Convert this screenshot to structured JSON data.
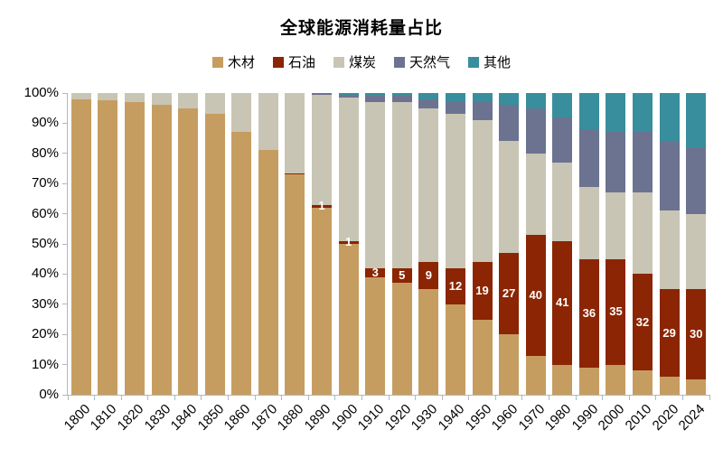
{
  "title": "全球能源消耗量占比",
  "legend": [
    {
      "key": "wood",
      "label": "木材",
      "color": "#C69D60"
    },
    {
      "key": "oil",
      "label": "石油",
      "color": "#8B2503"
    },
    {
      "key": "coal",
      "label": "煤炭",
      "color": "#C9C5B5"
    },
    {
      "key": "gas",
      "label": "天然气",
      "color": "#6B7391"
    },
    {
      "key": "other",
      "label": "其他",
      "color": "#398E9D"
    }
  ],
  "chart_data": {
    "type": "bar",
    "stacked": true,
    "percent": true,
    "title": "全球能源消耗量占比",
    "grid": false,
    "legend_position": "top",
    "ylim": [
      0,
      100
    ],
    "y_ticks": [
      "0%",
      "10%",
      "20%",
      "30%",
      "40%",
      "50%",
      "60%",
      "70%",
      "80%",
      "90%",
      "100%"
    ],
    "categories": [
      "1800",
      "1810",
      "1820",
      "1830",
      "1840",
      "1850",
      "1860",
      "1870",
      "1880",
      "1890",
      "1900",
      "1910",
      "1920",
      "1930",
      "1940",
      "1950",
      "1960",
      "1970",
      "1980",
      "1990",
      "2000",
      "2010",
      "2020",
      "2024"
    ],
    "series": [
      {
        "key": "wood",
        "name": "木材",
        "color": "#C69D60",
        "values": [
          98,
          97.5,
          97,
          96,
          95,
          93,
          87,
          81,
          73,
          62,
          50,
          39,
          37,
          35,
          30,
          25,
          20,
          13,
          10,
          9,
          10,
          8,
          6,
          5
        ]
      },
      {
        "key": "oil",
        "name": "石油",
        "color": "#8B2503",
        "values": [
          0,
          0,
          0,
          0,
          0,
          0,
          0,
          0,
          0.5,
          1,
          1,
          3,
          5,
          9,
          12,
          19,
          27,
          40,
          41,
          36,
          35,
          32,
          29,
          30
        ]
      },
      {
        "key": "coal",
        "name": "煤炭",
        "color": "#C9C5B5",
        "values": [
          2,
          2.5,
          3,
          4,
          5,
          7,
          13,
          19,
          26.5,
          36.5,
          47.5,
          55,
          55,
          51,
          51,
          47,
          37,
          27,
          26,
          24,
          22,
          27,
          26,
          25
        ]
      },
      {
        "key": "gas",
        "name": "天然气",
        "color": "#6B7391",
        "values": [
          0,
          0,
          0,
          0,
          0,
          0,
          0,
          0,
          0,
          0.5,
          1,
          2,
          2,
          3,
          4,
          6,
          12,
          15,
          15,
          19,
          20,
          20,
          23,
          22
        ]
      },
      {
        "key": "other",
        "name": "其他",
        "color": "#398E9D",
        "values": [
          0,
          0,
          0,
          0,
          0,
          0,
          0,
          0,
          0,
          0,
          0.5,
          1,
          1,
          2,
          3,
          3,
          4,
          5,
          8,
          12,
          13,
          13,
          16,
          18
        ]
      }
    ],
    "data_labels": {
      "series": "石油",
      "color": "#ffffff",
      "values": [
        "",
        "",
        "",
        "",
        "",
        "",
        "",
        "",
        "",
        "1",
        "1",
        "3",
        "5",
        "9",
        "12",
        "19",
        "27",
        "40",
        "41",
        "36",
        "35",
        "32",
        "29",
        "30"
      ]
    }
  }
}
